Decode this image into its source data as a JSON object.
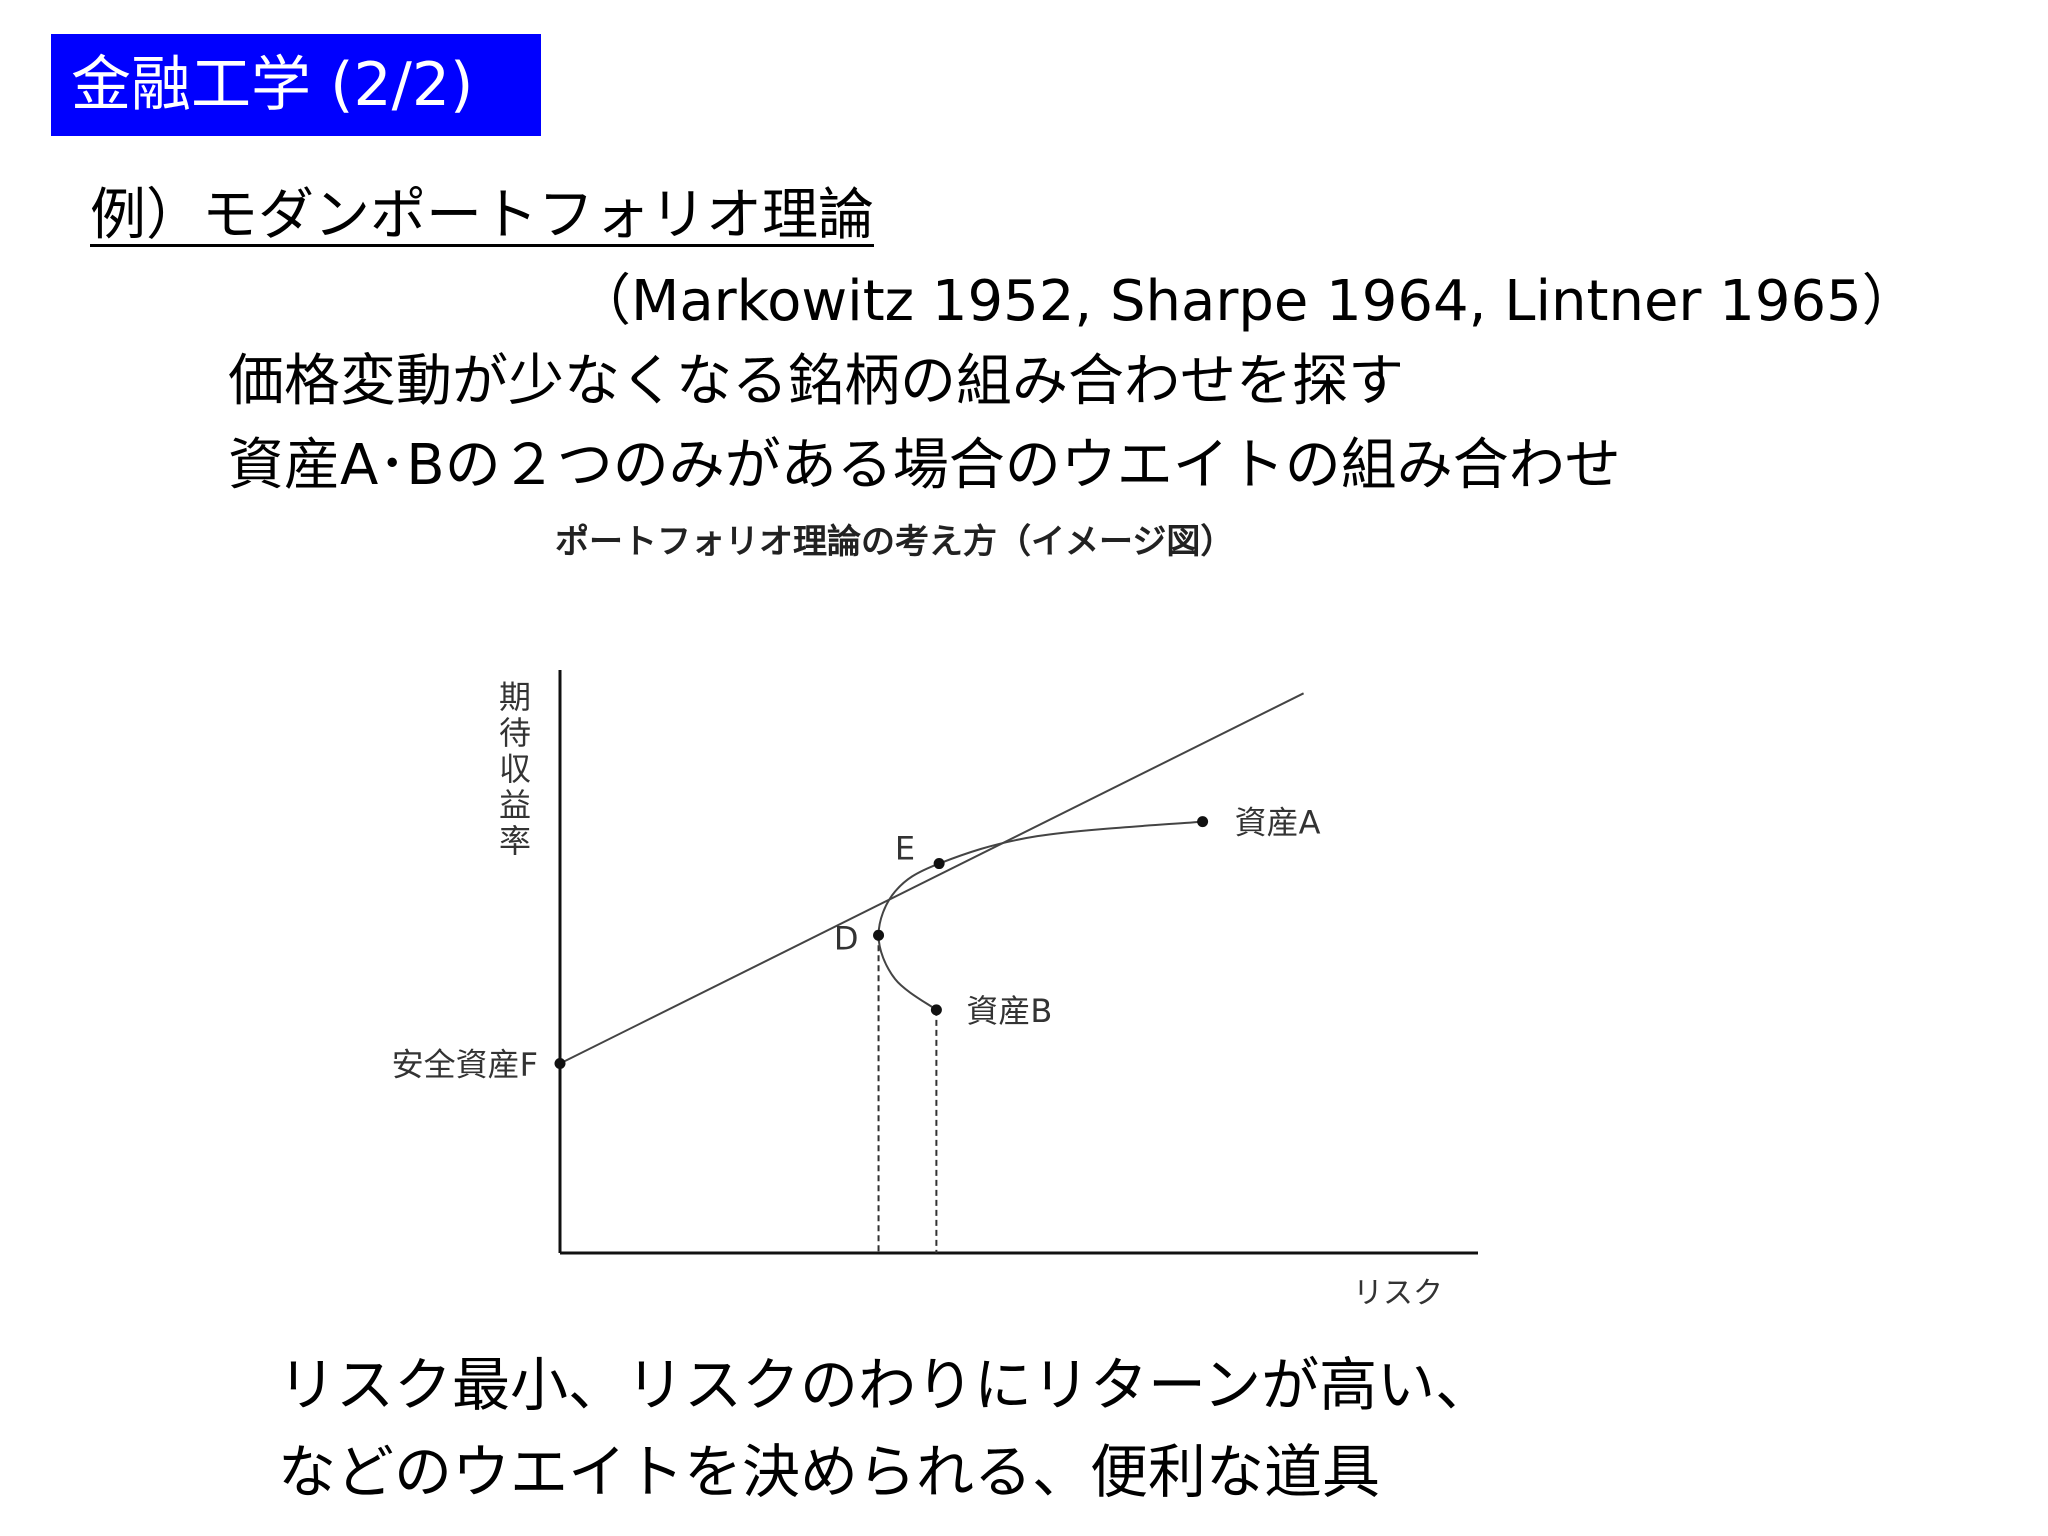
{
  "slide": {
    "title": "金融工学 (2/2)",
    "title_bg": "#0000ff",
    "subtitle": "例）モダンポートフォリオ理論",
    "references": "（Markowitz 1952, Sharpe 1964, Lintner 1965）",
    "body_lines": [
      "価格変動が少なくなる銘柄の組み合わせを探す",
      "資産A･Bの２つのみがある場合のウエイトの組み合わせ"
    ],
    "conclusion_lines": [
      "リスク最小、リスクのわりにリターンが高い、",
      "などのウエイトを決められる、便利な道具"
    ]
  },
  "chart_data": {
    "type": "line",
    "title": "ポートフォリオ理論の考え方（イメージ図）",
    "xlabel": "リスク",
    "ylabel": "期待収益率",
    "xlim": [
      0,
      100
    ],
    "ylim": [
      0,
      100
    ],
    "grid": false,
    "points": [
      {
        "name": "安全資産F",
        "x": 0,
        "y": 32.5
      },
      {
        "name": "D",
        "x": 34.7,
        "y": 54.5
      },
      {
        "name": "E",
        "x": 41.3,
        "y": 66.8
      },
      {
        "name": "資産B",
        "x": 41.0,
        "y": 41.7
      },
      {
        "name": "資産A",
        "x": 70.0,
        "y": 74.0
      }
    ],
    "frontier_curve": [
      {
        "x": 41.0,
        "y": 41.7
      },
      {
        "x": 36.5,
        "y": 47.0
      },
      {
        "x": 34.7,
        "y": 54.5
      },
      {
        "x": 36.5,
        "y": 62.0
      },
      {
        "x": 41.3,
        "y": 66.8
      },
      {
        "x": 52.0,
        "y": 71.5
      },
      {
        "x": 70.0,
        "y": 74.0
      }
    ],
    "tangent_line": [
      {
        "x": 0,
        "y": 32.5
      },
      {
        "x": 81.0,
        "y": 96.0
      }
    ],
    "dashed_drops": [
      "D",
      "資産B"
    ]
  }
}
